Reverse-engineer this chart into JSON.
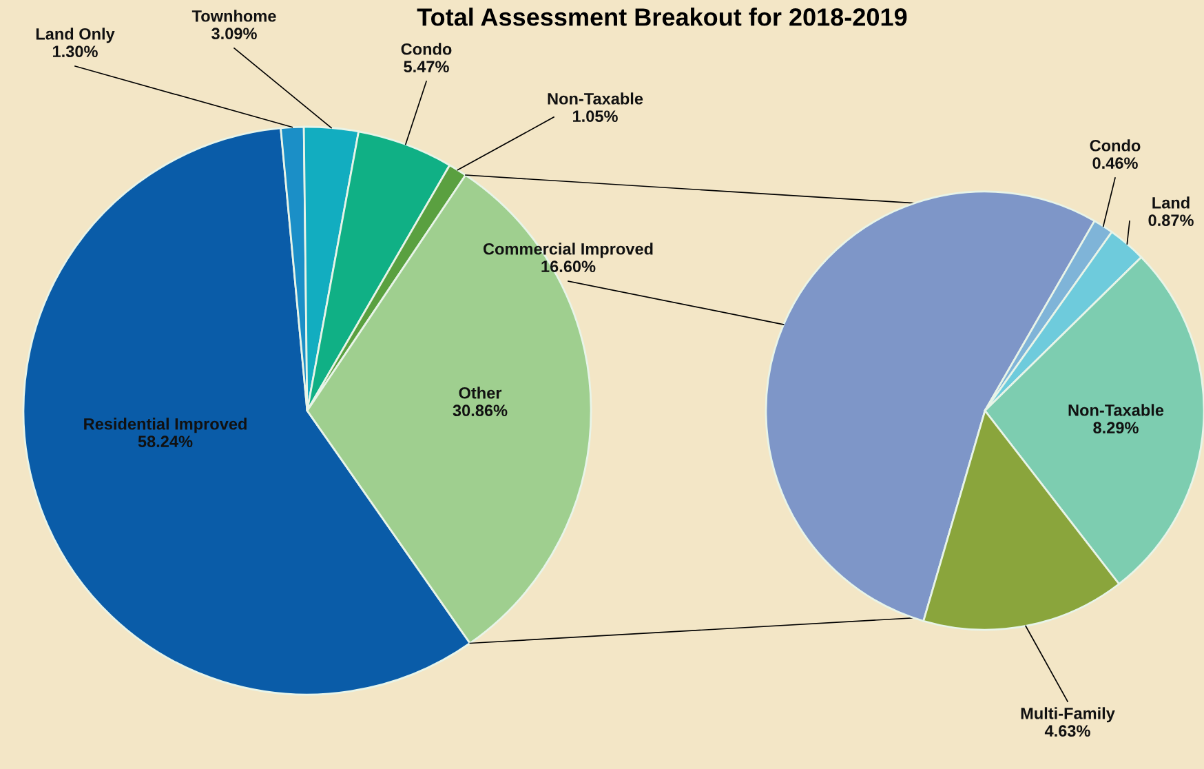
{
  "chart_data": [
    {
      "type": "pie",
      "title": "Total Assessment Breakout for 2018-2019",
      "categories": [
        "Residential Improved",
        "Land Only",
        "Townhome",
        "Condo",
        "Non-Taxable",
        "Other"
      ],
      "values": [
        58.24,
        1.3,
        3.09,
        5.47,
        1.05,
        30.86
      ],
      "value_labels": [
        "58.24%",
        "1.30%",
        "3.09%",
        "5.47%",
        "1.05%",
        "30.86%"
      ],
      "colors": [
        "#0a5ca8",
        "#1b8fc7",
        "#12adc0",
        "#10b085",
        "#5aa040",
        "#9fcf8f"
      ]
    },
    {
      "type": "pie",
      "categories": [
        "Commercial Improved",
        "Condo",
        "Land",
        "Non-Taxable",
        "Multi-Family"
      ],
      "values": [
        16.6,
        0.46,
        0.87,
        8.29,
        4.63
      ],
      "value_labels": [
        "16.60%",
        "0.46%",
        "0.87%",
        "8.29%",
        "4.63%"
      ],
      "colors": [
        "#7e96c8",
        "#7fb4d8",
        "#6ecbdc",
        "#7dcdb0",
        "#8aa53c"
      ]
    }
  ]
}
